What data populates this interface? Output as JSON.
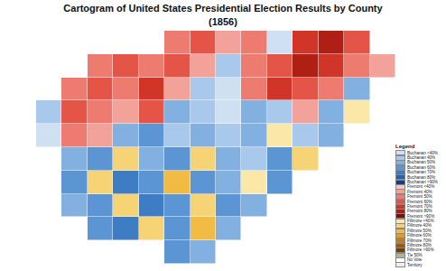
{
  "chart_data": {
    "type": "heatmap",
    "title": "Cartogram of United States Presidential Election Results by County",
    "subtitle": "(1856)",
    "legend_title": "Legend",
    "legend": "lower right",
    "tick_labels": false,
    "classes": [
      {
        "name": "Buchanan <40%",
        "color": "#cfe0f3"
      },
      {
        "name": "Buchanan 40%",
        "color": "#a9c9ec"
      },
      {
        "name": "Buchanan 50%",
        "color": "#82b0e0"
      },
      {
        "name": "Buchanan 60%",
        "color": "#5b95d3"
      },
      {
        "name": "Buchanan 70%",
        "color": "#3e7cc4"
      },
      {
        "name": "Buchanan 80%",
        "color": "#2662b0"
      },
      {
        "name": "Buchanan >90%",
        "color": "#0b3d91"
      },
      {
        "name": "Fremont <40%",
        "color": "#f9c7c1"
      },
      {
        "name": "Fremont 40%",
        "color": "#f3a29a"
      },
      {
        "name": "Fremont 50%",
        "color": "#ee7b70"
      },
      {
        "name": "Fremont 60%",
        "color": "#e45447"
      },
      {
        "name": "Fremont 70%",
        "color": "#d03528"
      },
      {
        "name": "Fremont 80%",
        "color": "#b01f13"
      },
      {
        "name": "Fremont >90%",
        "color": "#800c05"
      },
      {
        "name": "Fillmore <40%",
        "color": "#fbe8a8"
      },
      {
        "name": "Fillmore 40%",
        "color": "#f6d375"
      },
      {
        "name": "Fillmore 50%",
        "color": "#f1bb44"
      },
      {
        "name": "Fillmore 60%",
        "color": "#e39b22"
      },
      {
        "name": "Fillmore 70%",
        "color": "#c57a12"
      },
      {
        "name": "Fillmore 80%",
        "color": "#9e5a08"
      },
      {
        "name": "Fillmore >90%",
        "color": "#733e02"
      },
      {
        "name": "Tie 50%",
        "color": "#a8b894"
      },
      {
        "name": "No Vote",
        "color": "#ffffff"
      },
      {
        "name": "Territory",
        "color": "#eeeeee"
      }
    ],
    "cells": [
      [
        null,
        null,
        null,
        null,
        null,
        9,
        10,
        8,
        9,
        0,
        11,
        12,
        10,
        null
      ],
      [
        null,
        null,
        9,
        10,
        9,
        10,
        8,
        1,
        9,
        10,
        12,
        11,
        9,
        8
      ],
      [
        null,
        9,
        10,
        9,
        11,
        8,
        1,
        0,
        9,
        11,
        10,
        9,
        2,
        null
      ],
      [
        1,
        10,
        9,
        8,
        10,
        2,
        1,
        0,
        2,
        1,
        8,
        2,
        14,
        null
      ],
      [
        0,
        9,
        8,
        2,
        3,
        1,
        2,
        1,
        2,
        14,
        1,
        2,
        null,
        null
      ],
      [
        null,
        2,
        3,
        15,
        2,
        3,
        15,
        2,
        1,
        3,
        15,
        null,
        null,
        null
      ],
      [
        null,
        3,
        15,
        4,
        3,
        16,
        3,
        2,
        14,
        3,
        null,
        null,
        null,
        null
      ],
      [
        null,
        2,
        3,
        15,
        4,
        3,
        15,
        3,
        2,
        null,
        null,
        null,
        null,
        null
      ],
      [
        null,
        null,
        3,
        4,
        15,
        3,
        16,
        2,
        null,
        null,
        null,
        null,
        null,
        null
      ],
      [
        null,
        null,
        null,
        null,
        null,
        3,
        2,
        null,
        null,
        null,
        null,
        null,
        null,
        null
      ]
    ]
  }
}
